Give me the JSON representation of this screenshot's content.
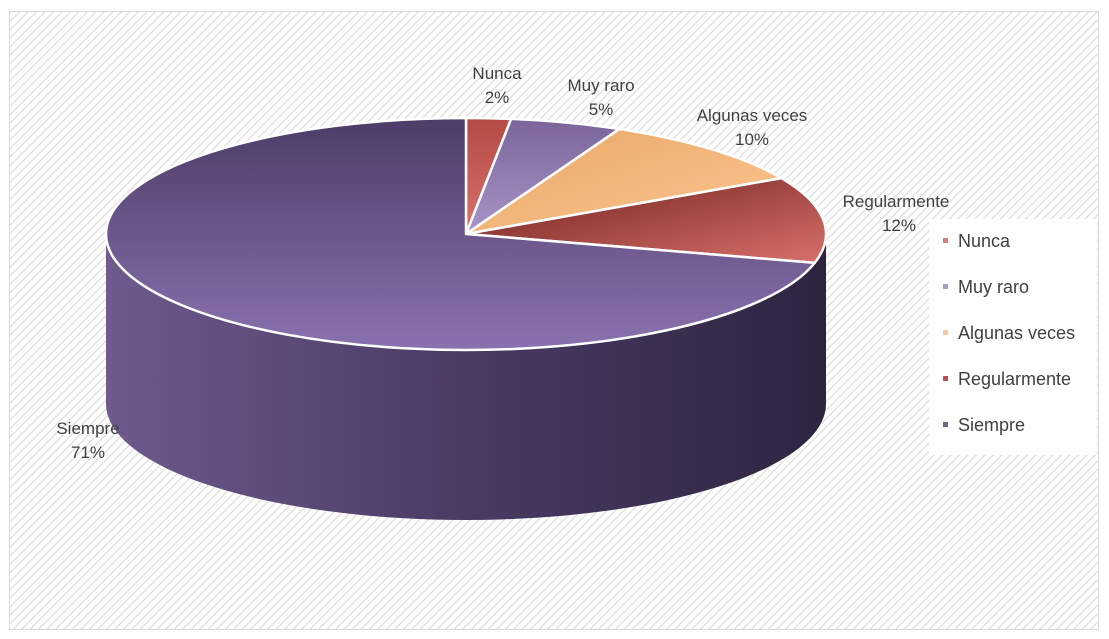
{
  "chart_data": {
    "type": "pie",
    "variant": "3d",
    "title": "",
    "categories": [
      "Nunca",
      "Muy raro",
      "Algunas veces",
      "Regularmente",
      "Siempre"
    ],
    "values": [
      2,
      5,
      10,
      12,
      71
    ],
    "percent_labels": [
      "2%",
      "5%",
      "10%",
      "12%",
      "71%"
    ],
    "colors": [
      "#c0504d",
      "#8064a2",
      "#f79646",
      "#c0504d",
      "#5f4a7e"
    ],
    "legend": {
      "position": "right",
      "entries": [
        "Nunca",
        "Muy raro",
        "Algunas veces",
        "Regularmente",
        "Siempre"
      ]
    },
    "background": "diagonal-hatch"
  }
}
